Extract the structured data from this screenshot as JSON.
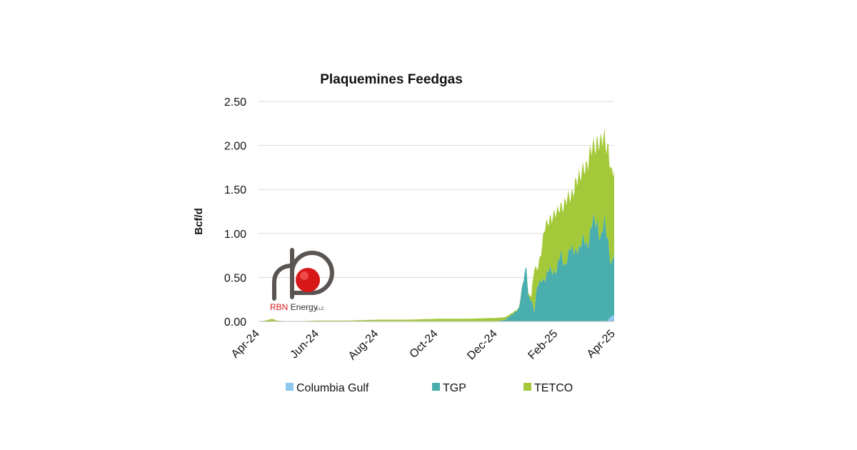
{
  "chart_data": {
    "type": "area",
    "title": "Plaquemines Feedgas",
    "xlabel": "",
    "ylabel": "Bcf/d",
    "x_ticks": [
      "Apr-24",
      "Jun-24",
      "Aug-24",
      "Oct-24",
      "Dec-24",
      "Feb-25",
      "Apr-25"
    ],
    "y_ticks": [
      "0.00",
      "0.50",
      "1.00",
      "1.50",
      "2.00",
      "2.50"
    ],
    "ylim": [
      0,
      2.5
    ],
    "xlim": [
      "2024-04-01",
      "2025-04-01"
    ],
    "stacked": true,
    "grid": true,
    "legend_position": "bottom",
    "series": [
      {
        "name": "Columbia Gulf",
        "color": "#8fc7ee",
        "points": [
          [
            "2024-04-01",
            0
          ],
          [
            "2025-03-25",
            0
          ],
          [
            "2025-03-28",
            0.05
          ],
          [
            "2025-04-01",
            0.08
          ]
        ]
      },
      {
        "name": "TGP",
        "color": "#4aaeae",
        "points": [
          [
            "2024-04-01",
            0
          ],
          [
            "2024-12-01",
            0
          ],
          [
            "2024-12-10",
            0.02
          ],
          [
            "2024-12-18",
            0.08
          ],
          [
            "2024-12-24",
            0.15
          ],
          [
            "2024-12-28",
            0.4
          ],
          [
            "2025-01-01",
            0.62
          ],
          [
            "2025-01-03",
            0.3
          ],
          [
            "2025-01-06",
            0.25
          ],
          [
            "2025-01-09",
            0.1
          ],
          [
            "2025-01-12",
            0.4
          ],
          [
            "2025-01-16",
            0.5
          ],
          [
            "2025-01-20",
            0.45
          ],
          [
            "2025-01-25",
            0.62
          ],
          [
            "2025-02-01",
            0.55
          ],
          [
            "2025-02-05",
            0.78
          ],
          [
            "2025-02-10",
            0.65
          ],
          [
            "2025-02-15",
            0.8
          ],
          [
            "2025-02-20",
            0.85
          ],
          [
            "2025-02-25",
            0.8
          ],
          [
            "2025-03-01",
            0.95
          ],
          [
            "2025-03-05",
            0.9
          ],
          [
            "2025-03-10",
            1.1
          ],
          [
            "2025-03-15",
            1.15
          ],
          [
            "2025-03-18",
            0.95
          ],
          [
            "2025-03-22",
            1.1
          ],
          [
            "2025-03-26",
            0.9
          ],
          [
            "2025-03-29",
            0.6
          ],
          [
            "2025-04-01",
            0.7
          ]
        ]
      },
      {
        "name": "TETCO",
        "color": "#a3c93a",
        "points": [
          [
            "2024-04-01",
            0
          ],
          [
            "2024-04-08",
            0.01
          ],
          [
            "2024-04-15",
            0.03
          ],
          [
            "2024-04-20",
            0.01
          ],
          [
            "2024-05-01",
            0
          ],
          [
            "2024-06-01",
            0.01
          ],
          [
            "2024-07-01",
            0.01
          ],
          [
            "2024-08-01",
            0.02
          ],
          [
            "2024-09-01",
            0.02
          ],
          [
            "2024-10-01",
            0.03
          ],
          [
            "2024-11-01",
            0.03
          ],
          [
            "2024-12-01",
            0.04
          ],
          [
            "2024-12-24",
            0.01
          ],
          [
            "2025-01-01",
            0
          ],
          [
            "2025-01-06",
            0.05
          ],
          [
            "2025-01-09",
            0.5
          ],
          [
            "2025-01-12",
            0.2
          ],
          [
            "2025-01-16",
            0.3
          ],
          [
            "2025-01-20",
            0.6
          ],
          [
            "2025-01-25",
            0.58
          ],
          [
            "2025-02-01",
            0.65
          ],
          [
            "2025-02-05",
            0.55
          ],
          [
            "2025-02-10",
            0.7
          ],
          [
            "2025-02-15",
            0.6
          ],
          [
            "2025-02-20",
            0.75
          ],
          [
            "2025-02-25",
            0.8
          ],
          [
            "2025-03-01",
            0.85
          ],
          [
            "2025-03-05",
            0.9
          ],
          [
            "2025-03-10",
            0.85
          ],
          [
            "2025-03-15",
            0.95
          ],
          [
            "2025-03-18",
            1.05
          ],
          [
            "2025-03-22",
            0.95
          ],
          [
            "2025-03-26",
            1.1
          ],
          [
            "2025-03-29",
            1.0
          ],
          [
            "2025-04-01",
            0.9
          ]
        ]
      }
    ]
  },
  "logo": {
    "name_red": "RBN",
    "name_rest": " Energy",
    "suffix": "LLC",
    "colors": {
      "red": "#d81818",
      "ring": "#5a5452",
      "text": "#333333"
    }
  }
}
